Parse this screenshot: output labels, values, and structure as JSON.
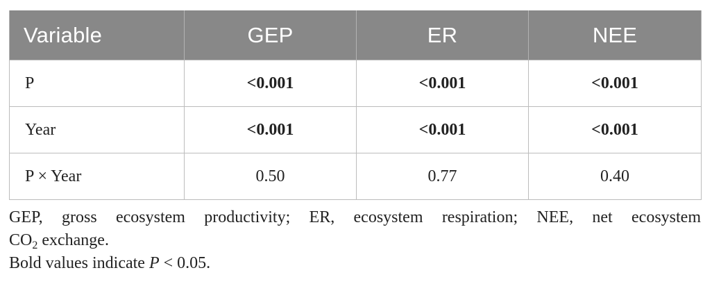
{
  "table": {
    "headers": [
      "Variable",
      "GEP",
      "ER",
      "NEE"
    ],
    "rows": [
      {
        "label": "P",
        "values": [
          "<0.001",
          "<0.001",
          "<0.001"
        ]
      },
      {
        "label": "Year",
        "values": [
          "<0.001",
          "<0.001",
          "<0.001"
        ]
      },
      {
        "label": "P × Year",
        "values": [
          "0.50",
          "0.77",
          "0.40"
        ]
      }
    ]
  },
  "footnote": {
    "line1": "GEP, gross ecosystem productivity; ER, ecosystem respiration; NEE, net ecosystem",
    "line2_pre": "CO",
    "line2_sub": "2",
    "line2_post": " exchange.",
    "line3_pre": "Bold values indicate ",
    "line3_italic": "P",
    "line3_post": " < 0.05."
  }
}
